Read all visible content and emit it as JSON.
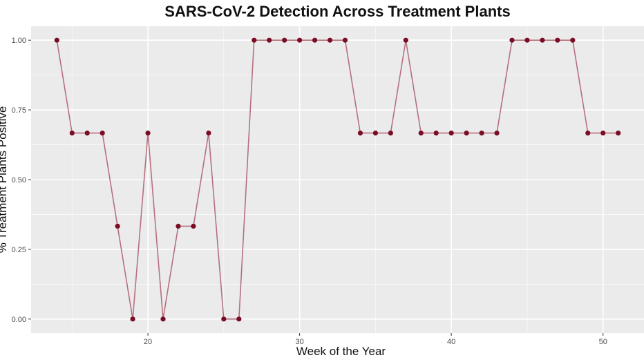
{
  "chart_data": {
    "type": "line",
    "title": "SARS-CoV-2 Detection Across Treatment Plants",
    "xlabel": "Week of the Year",
    "ylabel": "% Treatment Plants Positive",
    "xlim": [
      12.3,
      52.7
    ],
    "ylim": [
      -0.05,
      1.05
    ],
    "x_ticks": [
      20,
      30,
      40,
      50
    ],
    "y_ticks": [
      0.0,
      0.25,
      0.5,
      0.75,
      1.0
    ],
    "x_tick_labels": [
      "20",
      "30",
      "40",
      "50"
    ],
    "y_tick_labels": [
      "0.00",
      "0.25",
      "0.50",
      "0.75",
      "1.00"
    ],
    "grid": true,
    "colors": {
      "panel_background": "#ebebeb",
      "grid": "#ffffff",
      "line": "#b5707f",
      "point": "#7a0d24"
    },
    "series": [
      {
        "x": [
          14,
          15,
          16,
          17,
          18,
          19,
          20,
          21,
          22,
          23,
          24,
          25,
          26,
          27,
          28,
          29,
          30,
          31,
          32,
          33,
          34,
          35,
          36,
          37,
          38,
          39,
          40,
          41,
          42,
          43,
          44,
          45,
          46,
          47,
          48,
          49,
          50,
          51
        ],
        "values": [
          1.0,
          0.667,
          0.667,
          0.667,
          0.333,
          0.0,
          0.667,
          0.0,
          0.333,
          0.333,
          0.667,
          0.0,
          0.0,
          1.0,
          1.0,
          1.0,
          1.0,
          1.0,
          1.0,
          1.0,
          0.667,
          0.667,
          0.667,
          1.0,
          0.667,
          0.667,
          0.667,
          0.667,
          0.667,
          0.667,
          1.0,
          1.0,
          1.0,
          1.0,
          1.0,
          0.667,
          0.667,
          0.667
        ]
      }
    ]
  }
}
